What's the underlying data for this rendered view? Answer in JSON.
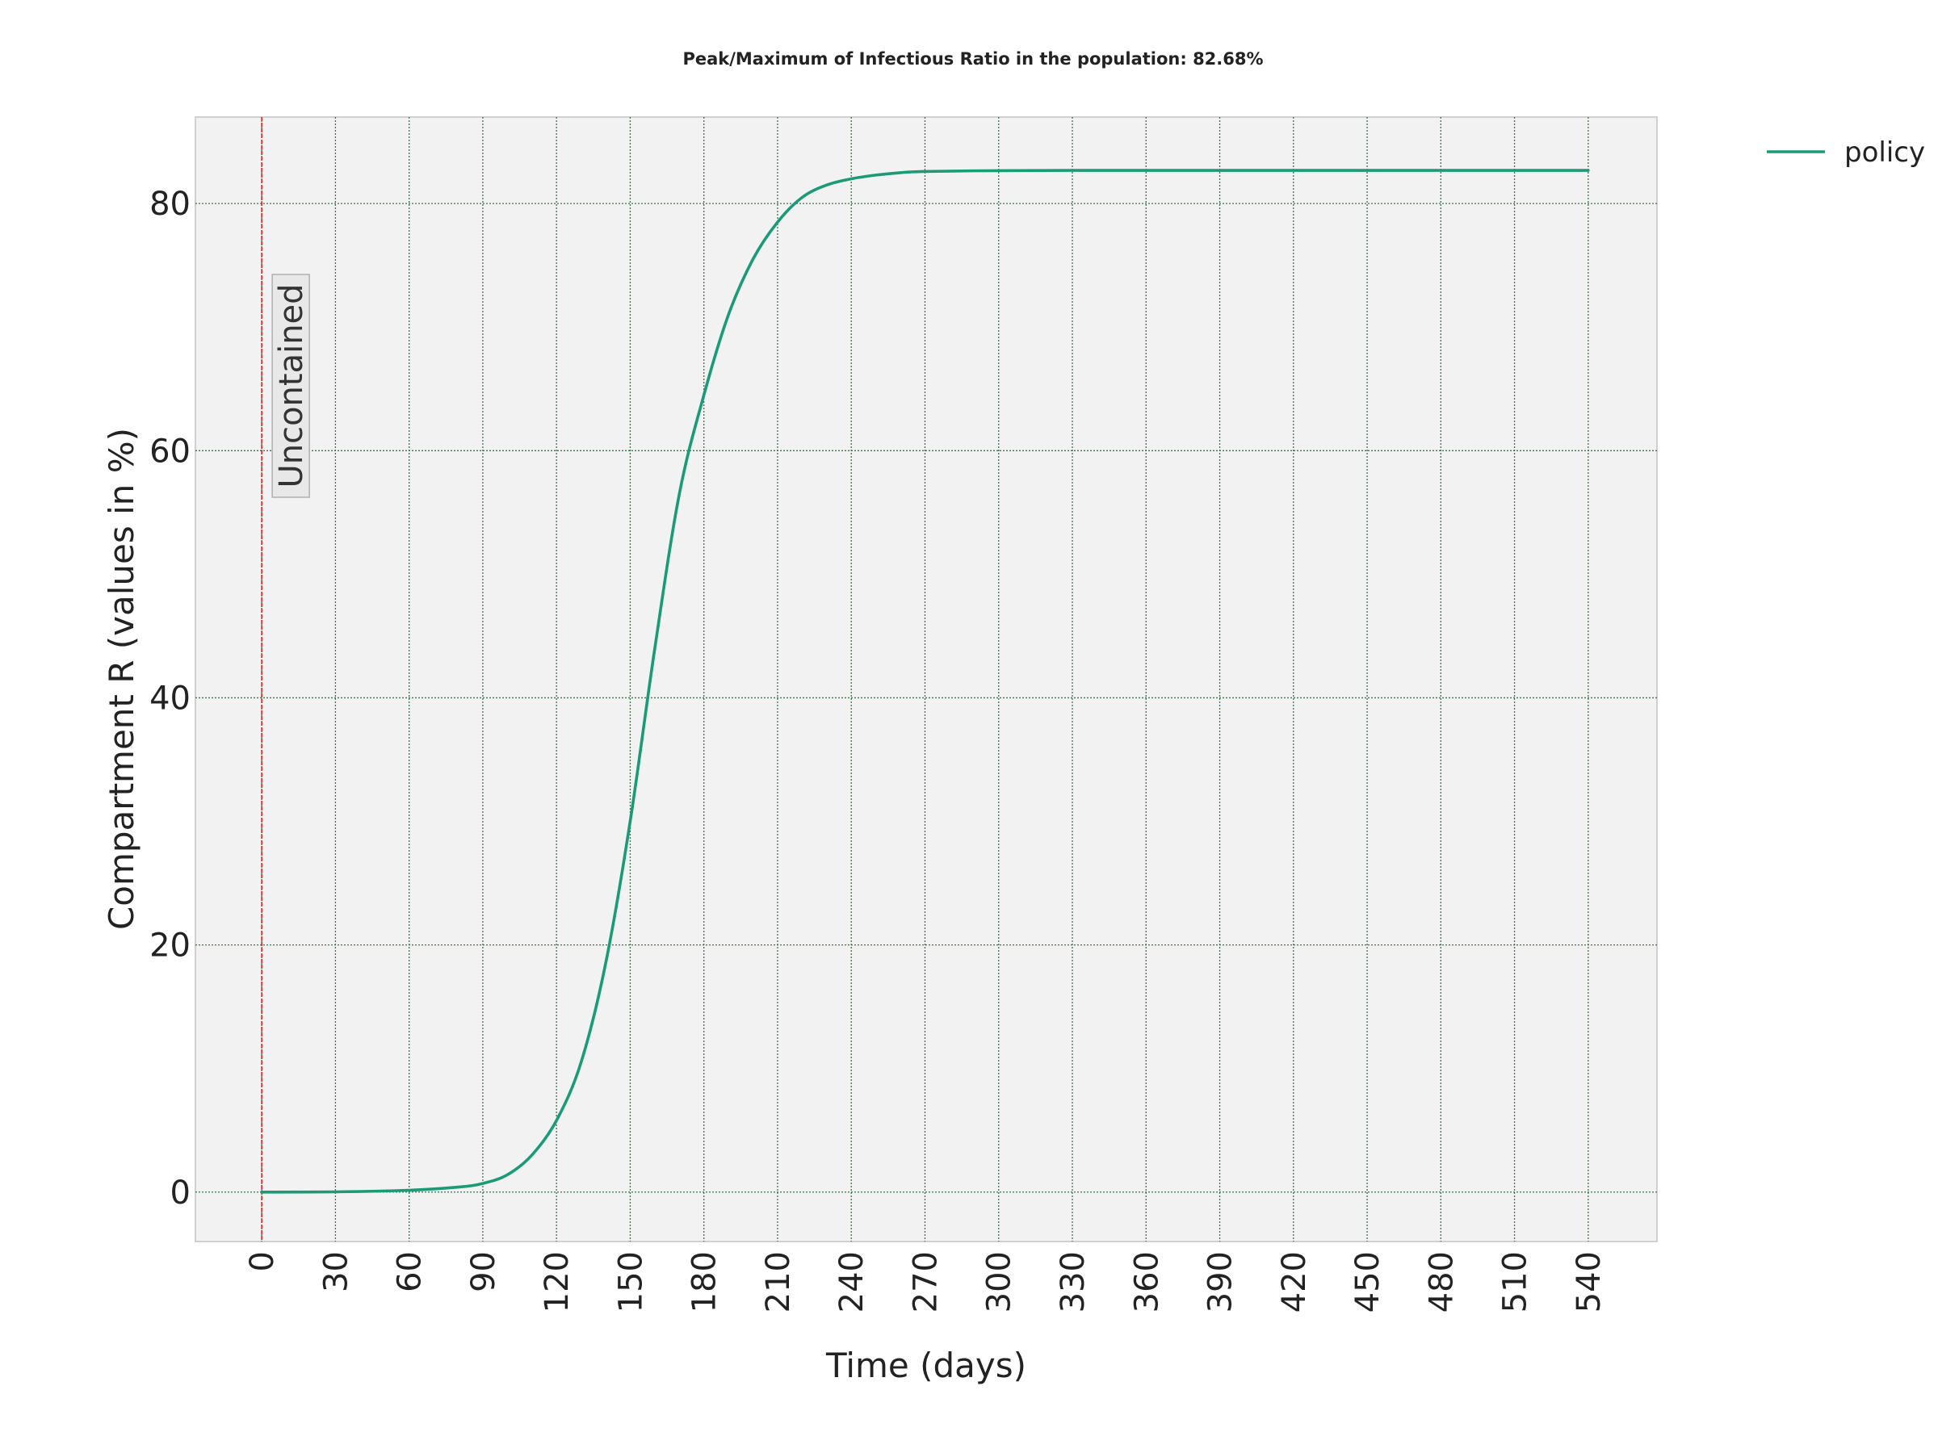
{
  "chart_data": {
    "type": "line",
    "title": "Peak/Maximum of Infectious Ratio in the population: 82.68%",
    "xlabel": "Time (days)",
    "ylabel": "Compartment R (values in %)",
    "xlim": [
      -27,
      568
    ],
    "ylim": [
      -4,
      87
    ],
    "xticks": [
      0,
      30,
      60,
      90,
      120,
      150,
      180,
      210,
      240,
      270,
      300,
      330,
      360,
      390,
      420,
      450,
      480,
      510,
      540
    ],
    "xtick_labels": [
      "0",
      "30",
      "60",
      "90",
      "120",
      "150",
      "180",
      "210",
      "240",
      "270",
      "300",
      "330",
      "360",
      "390",
      "420",
      "450",
      "480",
      "510",
      "540"
    ],
    "yticks": [
      0,
      20,
      40,
      60,
      80
    ],
    "ytick_labels": [
      "0",
      "20",
      "40",
      "60",
      "80"
    ],
    "grid": true,
    "legend_position": "outside-top-right",
    "series": [
      {
        "name": "policy",
        "color": "#1a9b76",
        "x": [
          0,
          30,
          60,
          80,
          90,
          100,
          110,
          120,
          130,
          140,
          150,
          160,
          170,
          180,
          190,
          200,
          210,
          220,
          230,
          240,
          250,
          260,
          270,
          300,
          330,
          360,
          390,
          420,
          450,
          480,
          510,
          540
        ],
        "y": [
          0,
          0.02,
          0.15,
          0.4,
          0.7,
          1.4,
          3.0,
          5.8,
          10.5,
          18.5,
          30.0,
          44.0,
          56.5,
          64.5,
          71.0,
          75.5,
          78.5,
          80.5,
          81.5,
          82.0,
          82.3,
          82.5,
          82.6,
          82.66,
          82.68,
          82.68,
          82.68,
          82.68,
          82.68,
          82.68,
          82.68,
          82.68
        ]
      }
    ],
    "annotations": [
      {
        "type": "vline",
        "x": 0,
        "color": "#d62728",
        "label": "Uncontained"
      }
    ]
  }
}
